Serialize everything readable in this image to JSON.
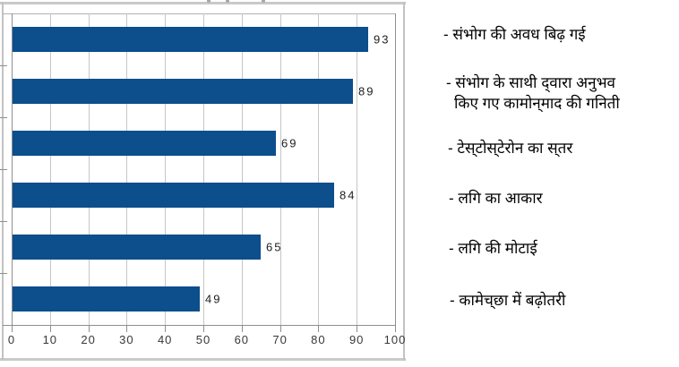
{
  "chart_data": {
    "type": "bar",
    "orientation": "horizontal",
    "title": "",
    "xlabel": "",
    "ylabel": "",
    "categories": [
      "संभोग की अवध बिढ़ गई",
      "संभोग के साथी द्वारा अनुभव किए गए कामोन्माद की गनिती",
      "टेस्टोस्टेरोन का स्तर",
      "लगि का आकार",
      "लगि की मोटाई",
      "कामेच्छा में बढ़ोतरी"
    ],
    "values": [
      93,
      89,
      69,
      84,
      65,
      49
    ],
    "value_labels": [
      "93",
      "89",
      "69",
      "84",
      "65",
      "49"
    ],
    "xlim": [
      0,
      100
    ],
    "xticks": [
      "0",
      "10",
      "20",
      "30",
      "40",
      "50",
      "60",
      "70",
      "80",
      "90",
      "100"
    ],
    "grid": true,
    "legend_position": "right"
  },
  "category_labels": [
    {
      "lines": [
        "- संभोग की अवध बिढ़ गई"
      ]
    },
    {
      "lines": [
        "- संभोग के साथी द्‌वारा अनुभव",
        "किए गए कामोन्‌माद की गनिती"
      ]
    },
    {
      "lines": [
        "- टेस्‌टोस्‌टेरोन का स्‌तर"
      ]
    },
    {
      "lines": [
        "- लगि का आकार"
      ]
    },
    {
      "lines": [
        "- लगि की मोटाई"
      ]
    },
    {
      "lines": [
        "- कामेच्‌छा में बढ़ोतरी"
      ]
    }
  ],
  "colors": {
    "bar": "#0d4e8c",
    "grid": "#c6c6c6",
    "axis": "#8f8f8f",
    "plot_border": "#b0b0b0",
    "outer_border": "#c9c9c9",
    "value_text": "#202020",
    "tick_text": "#383838"
  }
}
